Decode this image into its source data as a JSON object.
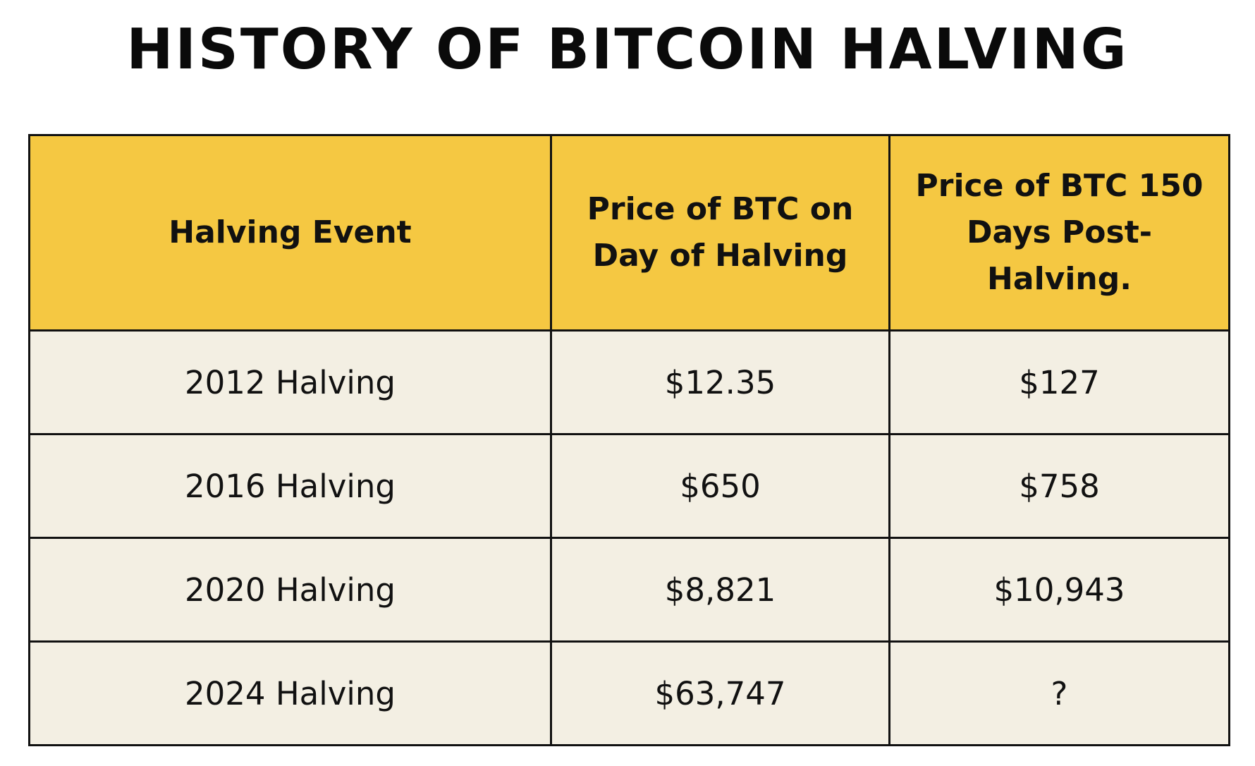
{
  "title": "HISTORY OF BITCOIN HALVING",
  "colors": {
    "header_bg": "#f5c842",
    "row_bg": "#f3efe3",
    "border": "#111111",
    "text": "#111111"
  },
  "table": {
    "headers": [
      "Halving Event",
      "Price of BTC on Day of Halving",
      "Price of BTC 150 Days Post-Halving."
    ],
    "rows": [
      {
        "event": "2012 Halving",
        "day_price": "$12.35",
        "post_price": "$127"
      },
      {
        "event": "2016 Halving",
        "day_price": "$650",
        "post_price": "$758"
      },
      {
        "event": "2020 Halving",
        "day_price": "$8,821",
        "post_price": "$10,943"
      },
      {
        "event": "2024 Halving",
        "day_price": "$63,747",
        "post_price": "?"
      }
    ]
  }
}
